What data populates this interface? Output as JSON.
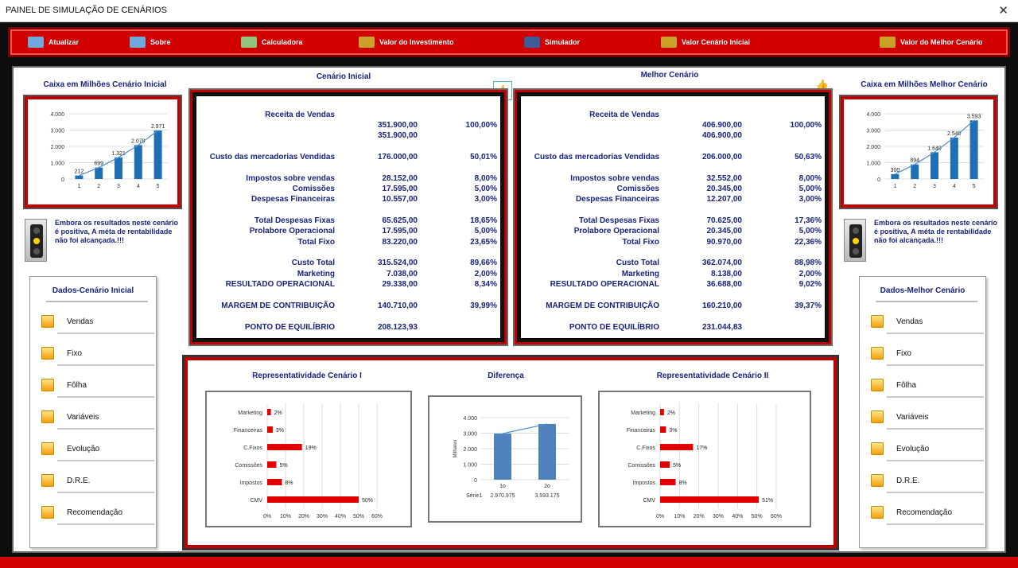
{
  "window": {
    "title": "PAINEL DE SIMULAÇÃO DE CENÁRIOS",
    "close": "✕"
  },
  "toolbar": [
    {
      "label": "Atualizar",
      "icon": "refresh-icon",
      "color": "#6fa8dc"
    },
    {
      "label": "Sobre",
      "icon": "info-icon",
      "color": "#6fa8dc"
    },
    {
      "label": "Calculadora",
      "icon": "calculator-icon",
      "color": "#93c47d"
    },
    {
      "label": "Valor do Investimento",
      "icon": "bar-chart-icon",
      "color": "#c9a227"
    },
    {
      "label": "Simulador",
      "icon": "screen-icon",
      "color": "#3d5a99"
    },
    {
      "label": "Valor Cenário Inicial",
      "icon": "bar-chart-icon",
      "color": "#c9a227"
    },
    {
      "label": "Valor do Melhor Cenário",
      "icon": "bar-chart-icon",
      "color": "#c9a227"
    }
  ],
  "left": {
    "chart_title": "Caixa em Milhões Cenário Inicial",
    "warning": "Embora os resultados neste cenário é positiva, A méta de rentabilidade não foi alcançada.!!!",
    "menu_title": "Dados-Cenário Inicial"
  },
  "right": {
    "chart_title": "Caixa em Milhões Melhor Cenário",
    "warning": "Embora os resultados neste cenário é positiva, A méta de rentabilidade não foi alcançada.!!!",
    "menu_title": "Dados-Melhor Cenário"
  },
  "menu_items": [
    "Vendas",
    "Fixo",
    "Fôlha",
    "Variáveis",
    "Evolução",
    "D.R.E.",
    "Recomendação"
  ],
  "scenario_initial": {
    "title": "Cenário Inicial",
    "rows": [
      {
        "label": "Receita de Vendas",
        "value": "",
        "pct": ""
      },
      {
        "label": "",
        "value": "351.900,00",
        "pct": "100,00%"
      },
      {
        "label": "",
        "value": "351.900,00",
        "pct": ""
      },
      {
        "label": "Custo das mercadorias Vendidas",
        "value": "176.000,00",
        "pct": "50,01%"
      },
      {
        "label": "Impostos sobre vendas",
        "value": "28.152,00",
        "pct": "8,00%"
      },
      {
        "label": "Comissões",
        "value": "17.595,00",
        "pct": "5,00%"
      },
      {
        "label": "Despesas Financeiras",
        "value": "10.557,00",
        "pct": "3,00%"
      },
      {
        "label": "Total Despesas Fixas",
        "value": "65.625,00",
        "pct": "18,65%"
      },
      {
        "label": "Prolabore Operacional",
        "value": "17.595,00",
        "pct": "5,00%"
      },
      {
        "label": "Total Fixo",
        "value": "83.220,00",
        "pct": "23,65%"
      },
      {
        "label": "Custo Total",
        "value": "315.524,00",
        "pct": "89,66%"
      },
      {
        "label": "Marketing",
        "value": "7.038,00",
        "pct": "2,00%"
      },
      {
        "label": "RESULTADO OPERACIONAL",
        "value": "29.338,00",
        "pct": "8,34%"
      },
      {
        "label": "MARGEM DE CONTRIBUIÇÃO",
        "value": "140.710,00",
        "pct": "39,99%"
      },
      {
        "label": "PONTO DE EQUILÍBRIO",
        "value": "208.123,93",
        "pct": ""
      }
    ]
  },
  "scenario_best": {
    "title": "Melhor Cenário",
    "rows": [
      {
        "label": "Receita de Vendas",
        "value": "",
        "pct": ""
      },
      {
        "label": "",
        "value": "406.900,00",
        "pct": "100,00%"
      },
      {
        "label": "",
        "value": "406.900,00",
        "pct": ""
      },
      {
        "label": "Custo das mercadorias Vendidas",
        "value": "206.000,00",
        "pct": "50,63%"
      },
      {
        "label": "Impostos sobre vendas",
        "value": "32.552,00",
        "pct": "8,00%"
      },
      {
        "label": "Comissões",
        "value": "20.345,00",
        "pct": "5,00%"
      },
      {
        "label": "Despesas Financeiras",
        "value": "12.207,00",
        "pct": "3,00%"
      },
      {
        "label": "Total Despesas Fixas",
        "value": "70.625,00",
        "pct": "17,36%"
      },
      {
        "label": "Prolabore Operacional",
        "value": "20.345,00",
        "pct": "5,00%"
      },
      {
        "label": "Total Fixo",
        "value": "90.970,00",
        "pct": "22,36%"
      },
      {
        "label": "Custo Total",
        "value": "362.074,00",
        "pct": "88,98%"
      },
      {
        "label": "Marketing",
        "value": "8.138,00",
        "pct": "2,00%"
      },
      {
        "label": "RESULTADO OPERACIONAL",
        "value": "36.688,00",
        "pct": "9,02%"
      },
      {
        "label": "MARGEM DE CONTRIBUIÇÃO",
        "value": "160.210,00",
        "pct": "39,37%"
      },
      {
        "label": "PONTO DE EQUILÍBRIO",
        "value": "231.044,83",
        "pct": ""
      }
    ]
  },
  "bottom": {
    "title_rep1": "Representatividade Cenário I",
    "title_diff": "Diferença",
    "title_rep2": "Representatividade Cenário II"
  },
  "chart_data": [
    {
      "type": "bar",
      "categories": [
        "1",
        "2",
        "3",
        "4",
        "5"
      ],
      "values": [
        212,
        699,
        1321,
        2079,
        2971
      ],
      "ylim": [
        0,
        4000
      ],
      "yticks": [
        "0",
        "1.000",
        "2.000",
        "3.000",
        "4.000"
      ],
      "labels": [
        "212",
        "699",
        "1.321",
        "2.079",
        "2.971"
      ],
      "trendline": true,
      "color": "#1f6fb5"
    },
    {
      "type": "bar",
      "categories": [
        "1",
        "2",
        "3",
        "4",
        "5"
      ],
      "values": [
        300,
        894,
        1640,
        2540,
        3593
      ],
      "ylim": [
        0,
        4000
      ],
      "yticks": [
        "0",
        "1.000",
        "2.000",
        "3.000",
        "4.000"
      ],
      "labels": [
        "300",
        "894",
        "1.640",
        "2.540",
        "3.593"
      ],
      "trendline": true,
      "color": "#1f6fb5"
    },
    {
      "type": "bar",
      "orientation": "horizontal",
      "categories": [
        "Marketing",
        "Financeiras",
        "C.Fixos",
        "Comissões",
        "Impostos",
        "CMV"
      ],
      "values": [
        2,
        3,
        19,
        5,
        8,
        50
      ],
      "labels": [
        "2%",
        "3%",
        "19%",
        "5%",
        "8%",
        "50%"
      ],
      "xticks": [
        "0%",
        "10%",
        "20%",
        "30%",
        "40%",
        "50%",
        "60%"
      ],
      "xlim": [
        0,
        60
      ],
      "color": "#e00000"
    },
    {
      "type": "bar",
      "categories": [
        "1o",
        "2o"
      ],
      "values": [
        2970.975,
        3593.175
      ],
      "ylim": [
        0,
        4000
      ],
      "yticks": [
        "0",
        "1.000",
        "2.000",
        "3.000",
        "4.000"
      ],
      "ylabel": "Milhares",
      "series_name": "Série1",
      "table_values": [
        "2.970.975",
        "3.593.175"
      ],
      "trendline": true,
      "color": "#4f81bd"
    },
    {
      "type": "bar",
      "orientation": "horizontal",
      "categories": [
        "Marketing",
        "Financeiras",
        "C.Fixos",
        "Comissões",
        "Impostos",
        "CMV"
      ],
      "values": [
        2,
        3,
        17,
        5,
        8,
        51
      ],
      "labels": [
        "2%",
        "3%",
        "17%",
        "5%",
        "8%",
        "51%"
      ],
      "xticks": [
        "0%",
        "10%",
        "20%",
        "30%",
        "40%",
        "50%",
        "60%"
      ],
      "xlim": [
        0,
        60
      ],
      "color": "#e00000"
    }
  ]
}
